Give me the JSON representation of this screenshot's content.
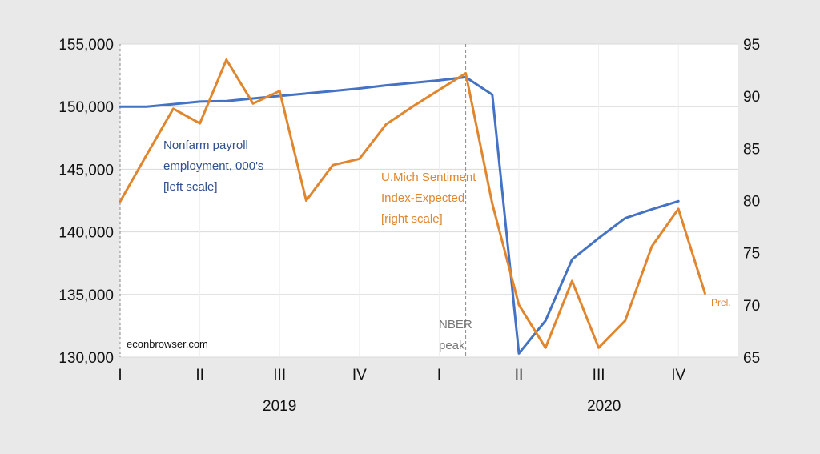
{
  "chart_data": {
    "type": "line",
    "x": [
      "2019-01",
      "2019-02",
      "2019-03",
      "2019-04",
      "2019-05",
      "2019-06",
      "2019-07",
      "2019-08",
      "2019-09",
      "2019-10",
      "2019-11",
      "2019-12",
      "2020-01",
      "2020-02",
      "2020-03",
      "2020-04",
      "2020-05",
      "2020-06",
      "2020-07",
      "2020-08",
      "2020-09",
      "2020-10",
      "2020-11"
    ],
    "series": [
      {
        "name": "Nonfarm payroll employment, 000's [left scale]",
        "axis": "left",
        "color": "#4472c4",
        "values": [
          150000,
          150000,
          150200,
          150400,
          150450,
          150650,
          150850,
          151050,
          151250,
          151450,
          151700,
          151900,
          152100,
          152350,
          150950,
          130300,
          132900,
          137800,
          139500,
          141100,
          141800,
          142450,
          null
        ]
      },
      {
        "name": "U.Mich Sentiment Index-Expected [right scale]",
        "axis": "right",
        "color": "#e0862e",
        "values": [
          79.9,
          84.4,
          88.8,
          87.4,
          93.5,
          89.3,
          90.5,
          80.0,
          83.4,
          84.0,
          87.3,
          89.0,
          90.6,
          92.2,
          79.7,
          70.0,
          65.9,
          72.3,
          65.9,
          68.5,
          75.6,
          79.2,
          71.1
        ]
      }
    ],
    "y_left": {
      "ylim": [
        130000,
        155000
      ],
      "ticks": [
        "130,000",
        "135,000",
        "140,000",
        "145,000",
        "150,000",
        "155,000"
      ]
    },
    "y_right": {
      "ylim": [
        65,
        95
      ],
      "ticks": [
        "65",
        "70",
        "75",
        "80",
        "85",
        "90",
        "95"
      ]
    },
    "x_quarter_labels": [
      "I",
      "II",
      "III",
      "IV",
      "I",
      "II",
      "III",
      "IV"
    ],
    "x_year_labels": [
      "2019",
      "2020"
    ],
    "vertical_line": {
      "at": "2020-02",
      "label_line1": "NBER",
      "label_line2": "peak"
    },
    "annotations": {
      "payroll_line1": "Nonfarm payroll",
      "payroll_line2": "employment, 000's",
      "payroll_line3": "[left scale]",
      "sentiment_line1": "U.Mich Sentiment",
      "sentiment_line2": "Index-Expected",
      "sentiment_line3": "[right scale]",
      "prel": "Prel.",
      "source": "econbrowser.com"
    },
    "grid": true,
    "plot_background": "#ffffff",
    "page_background": "#e9e9e9"
  }
}
